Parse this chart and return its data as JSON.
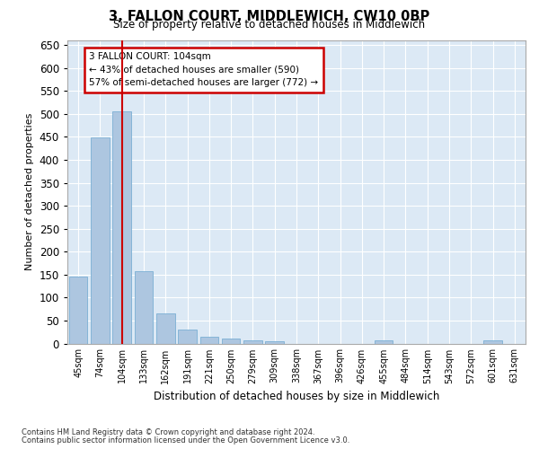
{
  "title": "3, FALLON COURT, MIDDLEWICH, CW10 0BP",
  "subtitle": "Size of property relative to detached houses in Middlewich",
  "xlabel": "Distribution of detached houses by size in Middlewich",
  "ylabel": "Number of detached properties",
  "categories": [
    "45sqm",
    "74sqm",
    "104sqm",
    "133sqm",
    "162sqm",
    "191sqm",
    "221sqm",
    "250sqm",
    "279sqm",
    "309sqm",
    "338sqm",
    "367sqm",
    "396sqm",
    "426sqm",
    "455sqm",
    "484sqm",
    "514sqm",
    "543sqm",
    "572sqm",
    "601sqm",
    "631sqm"
  ],
  "values": [
    145,
    448,
    505,
    158,
    66,
    30,
    14,
    10,
    7,
    5,
    0,
    0,
    0,
    0,
    6,
    0,
    0,
    0,
    0,
    6,
    0
  ],
  "bar_color": "#adc6e0",
  "bar_edge_color": "#7aafd4",
  "vline_x": 2,
  "vline_color": "#cc0000",
  "annotation_text": "3 FALLON COURT: 104sqm\n← 43% of detached houses are smaller (590)\n57% of semi-detached houses are larger (772) →",
  "annotation_box_color": "#ffffff",
  "annotation_box_edge_color": "#cc0000",
  "ylim": [
    0,
    660
  ],
  "yticks": [
    0,
    50,
    100,
    150,
    200,
    250,
    300,
    350,
    400,
    450,
    500,
    550,
    600,
    650
  ],
  "background_color": "#dce9f5",
  "grid_color": "#ffffff",
  "footer_line1": "Contains HM Land Registry data © Crown copyright and database right 2024.",
  "footer_line2": "Contains public sector information licensed under the Open Government Licence v3.0."
}
